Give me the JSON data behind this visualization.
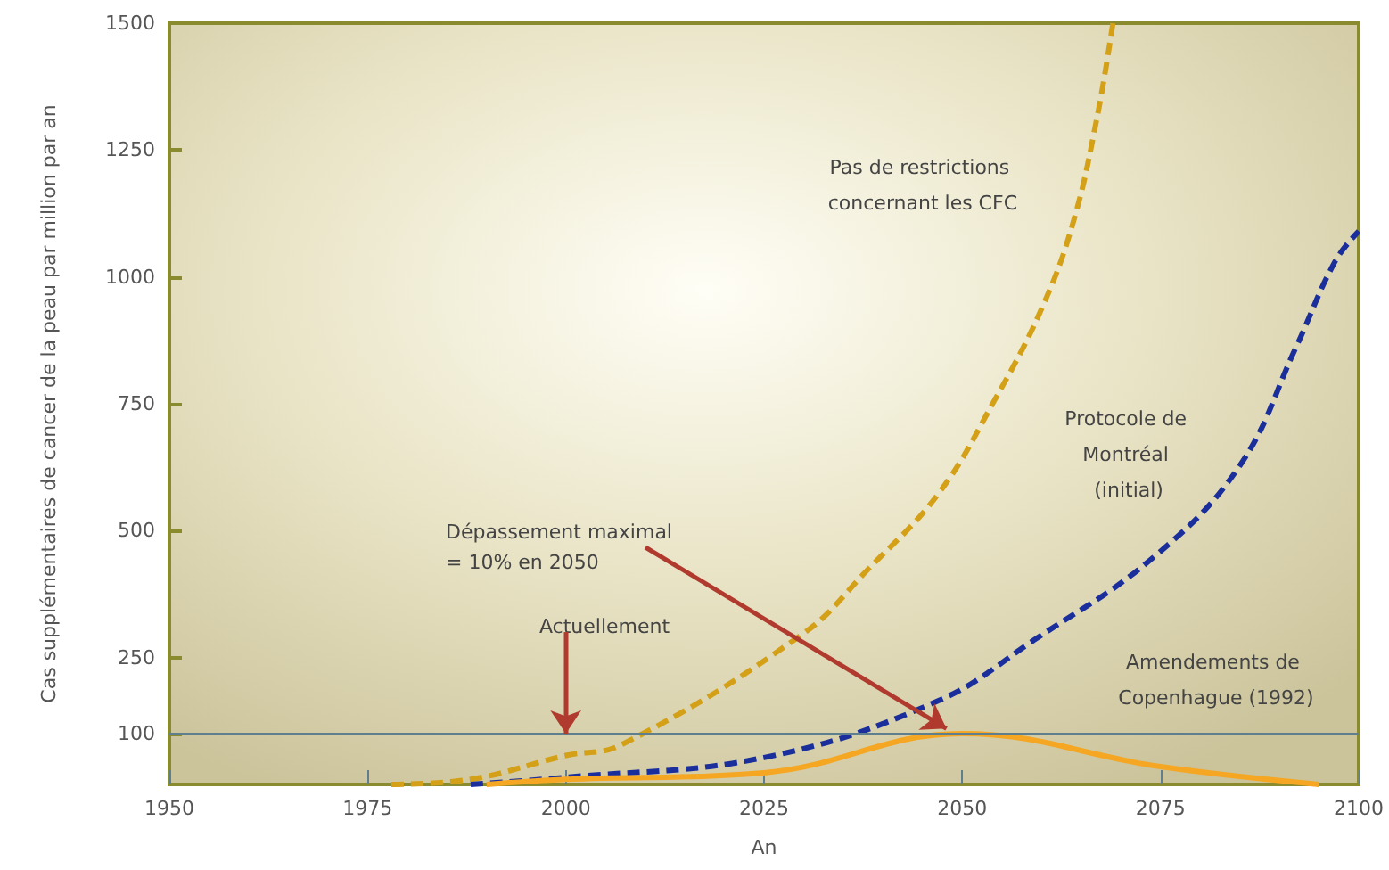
{
  "chart_data": {
    "type": "line",
    "xlabel": "An",
    "ylabel": "Cas supplémentaires de cancer de la peau par million par an",
    "xlim": [
      1950,
      2100
    ],
    "xticks": [
      1950,
      1975,
      2000,
      2025,
      2050,
      2075,
      2100
    ],
    "ylim": [
      0,
      1500
    ],
    "yticks": [
      100,
      250,
      500,
      750,
      1000,
      1250,
      1500
    ],
    "grid": false,
    "legend": false,
    "marker": "none",
    "series": [
      {
        "name": "Pas de restrictions concernant les CFC",
        "color": "#d4a017",
        "line_style": "dashed",
        "x": [
          1978,
          1988,
          2000,
          2007,
          2030,
          2038,
          2047,
          2054,
          2060,
          2064,
          2067,
          2069
        ],
        "values": [
          0,
          10,
          57,
          78,
          298,
          422,
          573,
          755,
          937,
          1108,
          1314,
          1500
        ]
      },
      {
        "name": "Protocole de Montréal (initial)",
        "color": "#1a2f9c",
        "line_style": "dashed",
        "x": [
          1988,
          2000,
          2025,
          2047,
          2059,
          2074,
          2085,
          2092,
          2097,
          2100
        ],
        "values": [
          0,
          14,
          53,
          165,
          284,
          446,
          628,
          858,
          1030,
          1090
        ]
      },
      {
        "name": "Amendements de Copenhague (1992)",
        "color": "#f5a623",
        "line_style": "solid",
        "x": [
          1990,
          2000,
          2025,
          2050,
          2075,
          2095
        ],
        "values": [
          0,
          10,
          23,
          100,
          35,
          0
        ]
      }
    ],
    "ref_lines": [
      {
        "axis": "y",
        "value": 100,
        "color": "#5f7f8f"
      }
    ],
    "annotations": [
      {
        "text": "Actuellement",
        "x": 2000,
        "y": 100
      },
      {
        "text": "Dépassement maximal = 10% en 2050",
        "x": 2048,
        "y": 110
      }
    ]
  }
}
